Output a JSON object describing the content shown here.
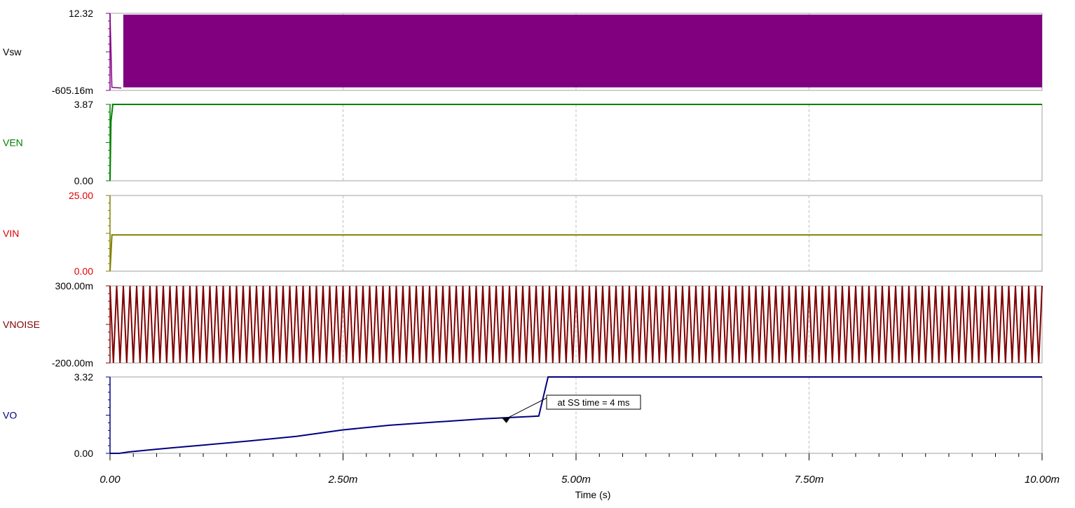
{
  "chart_data": {
    "type": "line",
    "title": "",
    "xlabel": "Time (s)",
    "x_range": [
      0,
      0.01
    ],
    "x_ticks": [
      "0.00",
      "2.50m",
      "5.00m",
      "7.50m",
      "10.00m"
    ],
    "x_tick_values": [
      0,
      0.0025,
      0.005,
      0.0075,
      0.01
    ],
    "grid": true,
    "legend": "none",
    "series": [
      {
        "name": "Vsw",
        "color": "#800080",
        "ylim": [
          -0.60516,
          12.32
        ],
        "ytick_labels": [
          "-605.16m",
          "12.32"
        ],
        "behavior": "switching",
        "switching_start": 0.00012,
        "high": 12.1,
        "low": -0.1,
        "points": [
          [
            0,
            12.32
          ],
          [
            2e-05,
            -0.1
          ],
          [
            0.00012,
            -0.2
          ]
        ]
      },
      {
        "name": "VEN",
        "color": "#008000",
        "ylim": [
          0,
          3.87
        ],
        "ytick_labels": [
          "0.00",
          "3.87"
        ],
        "points": [
          [
            0,
            0
          ],
          [
            1e-05,
            3.0
          ],
          [
            3e-05,
            3.87
          ],
          [
            0.01,
            3.87
          ]
        ]
      },
      {
        "name": "VIN",
        "color": "#808000",
        "label_color": "#e00000",
        "ylim": [
          0,
          25
        ],
        "ytick_labels": [
          "0.00",
          "25.00"
        ],
        "points": [
          [
            0,
            0
          ],
          [
            2e-05,
            12.0
          ],
          [
            0.01,
            12.0
          ]
        ]
      },
      {
        "name": "VNOISE",
        "color": "#800000",
        "ylim": [
          -0.2,
          0.3
        ],
        "ytick_labels": [
          "-200.00m",
          "300.00m"
        ],
        "behavior": "oscillation",
        "amplitude_high": 0.3,
        "amplitude_low": -0.2,
        "cycles": 140
      },
      {
        "name": "VO",
        "color": "#000080",
        "ylim": [
          0,
          3.32
        ],
        "ytick_labels": [
          "0.00",
          "3.32"
        ],
        "points": [
          [
            0,
            0
          ],
          [
            0.0001,
            0.0
          ],
          [
            0.0002,
            0.06
          ],
          [
            0.0005,
            0.18
          ],
          [
            0.001,
            0.36
          ],
          [
            0.0015,
            0.54
          ],
          [
            0.002,
            0.74
          ],
          [
            0.0025,
            1.02
          ],
          [
            0.003,
            1.22
          ],
          [
            0.0035,
            1.36
          ],
          [
            0.004,
            1.5
          ],
          [
            0.0046,
            1.62
          ],
          [
            0.0047,
            3.32
          ],
          [
            0.01,
            3.32
          ]
        ],
        "annotation": "at SS time = 4 ms"
      }
    ]
  }
}
